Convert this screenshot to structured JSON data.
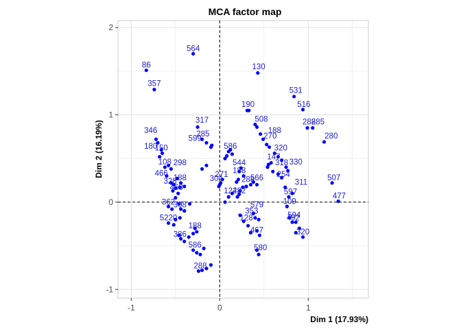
{
  "chart_data": {
    "type": "scatter",
    "title": "MCA factor map",
    "xlabel": "Dim 1 (17.93%)",
    "ylabel": "Dim 2 (16.19%)",
    "xlim": [
      -1.15,
      1.68
    ],
    "ylim": [
      -1.1,
      2.08
    ],
    "xticks": [
      -1,
      0,
      1
    ],
    "yticks": [
      -1,
      0,
      1,
      2
    ],
    "grid": true,
    "reference_lines": {
      "x": 0,
      "y": 0,
      "style": "dashed"
    },
    "colors": {
      "points": "#0000ff",
      "labels": "#1a1ad9",
      "panel_border": "#cccccc",
      "grid": "#e3e3e3"
    },
    "labeled_points": [
      {
        "label": "564",
        "x": -0.3,
        "y": 1.7
      },
      {
        "label": "86",
        "x": -0.83,
        "y": 1.51
      },
      {
        "label": "357",
        "x": -0.74,
        "y": 1.3
      },
      {
        "label": "130",
        "x": 0.44,
        "y": 1.49
      },
      {
        "label": "531",
        "x": 0.86,
        "y": 1.22
      },
      {
        "label": "516",
        "x": 0.95,
        "y": 1.06
      },
      {
        "label": "190",
        "x": 0.32,
        "y": 1.06
      },
      {
        "label": "317",
        "x": -0.2,
        "y": 0.88
      },
      {
        "label": "285",
        "x": -0.19,
        "y": 0.72
      },
      {
        "label": "150",
        "x": -0.66,
        "y": 0.56
      },
      {
        "label": "320",
        "x": 0.69,
        "y": 0.56
      },
      {
        "label": "298",
        "x": -0.45,
        "y": 0.39
      },
      {
        "label": "466",
        "x": -0.66,
        "y": 0.27
      },
      {
        "label": "507",
        "x": 1.29,
        "y": 0.22
      },
      {
        "label": "304",
        "x": -0.04,
        "y": 0.21
      },
      {
        "label": "468",
        "x": -0.49,
        "y": 0.11
      },
      {
        "label": "597",
        "x": 0.8,
        "y": 0.06
      },
      {
        "label": "477",
        "x": 1.35,
        "y": 0.01
      },
      {
        "label": "109",
        "x": 0.79,
        "y": -0.05
      },
      {
        "label": "594",
        "x": 0.84,
        "y": -0.21
      },
      {
        "label": "492",
        "x": 0.83,
        "y": -0.24
      }
    ],
    "cluster_labels": [
      {
        "label": "346",
        "x": -0.78,
        "y": 0.76
      },
      {
        "label": "180",
        "x": -0.78,
        "y": 0.58
      },
      {
        "label": "108",
        "x": -0.62,
        "y": 0.4
      },
      {
        "label": "328",
        "x": -0.56,
        "y": 0.18
      },
      {
        "label": "188",
        "x": -0.45,
        "y": 0.22
      },
      {
        "label": "362",
        "x": -0.58,
        "y": -0.06
      },
      {
        "label": "5220",
        "x": -0.58,
        "y": -0.24
      },
      {
        "label": "308",
        "x": -0.45,
        "y": -0.09
      },
      {
        "label": "386",
        "x": -0.45,
        "y": -0.43
      },
      {
        "label": "188",
        "x": -0.28,
        "y": -0.33
      },
      {
        "label": "586",
        "x": -0.28,
        "y": -0.55
      },
      {
        "label": "288",
        "x": -0.22,
        "y": -0.79
      },
      {
        "label": "599",
        "x": -0.28,
        "y": 0.67
      },
      {
        "label": "586",
        "x": 0.12,
        "y": 0.58
      },
      {
        "label": "544",
        "x": 0.22,
        "y": 0.39
      },
      {
        "label": "188",
        "x": 0.22,
        "y": 0.3
      },
      {
        "label": "271",
        "x": 0.02,
        "y": 0.26
      },
      {
        "label": "288",
        "x": 0.32,
        "y": 0.2
      },
      {
        "label": "566",
        "x": 0.42,
        "y": 0.22
      },
      {
        "label": "122",
        "x": 0.12,
        "y": 0.07
      },
      {
        "label": "482",
        "x": 0.22,
        "y": 0.07
      },
      {
        "label": "579",
        "x": 0.42,
        "y": -0.09
      },
      {
        "label": "353",
        "x": 0.36,
        "y": -0.16
      },
      {
        "label": "128",
        "x": 0.3,
        "y": -0.24
      },
      {
        "label": "467",
        "x": 0.42,
        "y": -0.38
      },
      {
        "label": "580",
        "x": 0.46,
        "y": -0.58
      },
      {
        "label": "508",
        "x": 0.47,
        "y": 0.89
      },
      {
        "label": "188",
        "x": 0.62,
        "y": 0.76
      },
      {
        "label": "270",
        "x": 0.57,
        "y": 0.7
      },
      {
        "label": "147",
        "x": 0.61,
        "y": 0.46
      },
      {
        "label": "318",
        "x": 0.7,
        "y": 0.39
      },
      {
        "label": "254",
        "x": 0.72,
        "y": 0.26
      },
      {
        "label": "330",
        "x": 0.86,
        "y": 0.4
      },
      {
        "label": "311",
        "x": 0.92,
        "y": 0.17
      },
      {
        "label": "288",
        "x": 1.01,
        "y": 0.86
      },
      {
        "label": "285",
        "x": 1.11,
        "y": 0.86
      },
      {
        "label": "280",
        "x": 1.26,
        "y": 0.7
      },
      {
        "label": "320",
        "x": 0.94,
        "y": -0.4
      }
    ],
    "points": [
      [
        -0.3,
        1.7
      ],
      [
        -0.83,
        1.51
      ],
      [
        -0.74,
        1.29
      ],
      [
        0.43,
        1.48
      ],
      [
        0.84,
        1.21
      ],
      [
        0.94,
        1.06
      ],
      [
        0.99,
        0.85
      ],
      [
        1.05,
        0.85
      ],
      [
        1.18,
        0.69
      ],
      [
        1.27,
        0.22
      ],
      [
        1.34,
        0.01
      ],
      [
        0.31,
        1.05
      ],
      [
        0.33,
        1.05
      ],
      [
        0.4,
        0.89
      ],
      [
        0.42,
        0.86
      ],
      [
        0.46,
        0.78
      ],
      [
        0.49,
        0.72
      ],
      [
        0.53,
        0.66
      ],
      [
        0.56,
        0.63
      ],
      [
        0.62,
        0.56
      ],
      [
        0.66,
        0.52
      ],
      [
        0.7,
        0.48
      ],
      [
        0.58,
        0.45
      ],
      [
        0.55,
        0.43
      ],
      [
        0.54,
        0.4
      ],
      [
        0.6,
        0.35
      ],
      [
        0.75,
        0.4
      ],
      [
        0.77,
        0.36
      ],
      [
        0.66,
        0.32
      ],
      [
        0.7,
        0.28
      ],
      [
        0.74,
        0.17
      ],
      [
        0.78,
        0.06
      ],
      [
        0.82,
        0.1
      ],
      [
        0.76,
        -0.05
      ],
      [
        0.79,
        -0.18
      ],
      [
        0.82,
        -0.23
      ],
      [
        0.86,
        -0.23
      ],
      [
        0.9,
        -0.3
      ],
      [
        0.94,
        -0.4
      ],
      [
        0.86,
        -0.35
      ],
      [
        0.4,
        -0.18
      ],
      [
        0.44,
        -0.2
      ],
      [
        0.42,
        -0.33
      ],
      [
        0.45,
        -0.38
      ],
      [
        0.42,
        -0.55
      ],
      [
        0.44,
        -0.6
      ],
      [
        0.23,
        -0.15
      ],
      [
        0.27,
        -0.22
      ],
      [
        0.35,
        -0.35
      ],
      [
        0.32,
        -0.27
      ],
      [
        0.38,
        -0.13
      ],
      [
        0.1,
        0.06
      ],
      [
        0.14,
        0.1
      ],
      [
        0.2,
        0.06
      ],
      [
        0.22,
        0.09
      ],
      [
        0.06,
        0.0
      ],
      [
        0.23,
        0.13
      ],
      [
        0.26,
        0.17
      ],
      [
        0.3,
        0.18
      ],
      [
        0.35,
        0.2
      ],
      [
        0.38,
        0.23
      ],
      [
        0.42,
        0.2
      ],
      [
        0.19,
        0.23
      ],
      [
        0.21,
        0.26
      ],
      [
        0.22,
        0.35
      ],
      [
        0.24,
        0.39
      ],
      [
        0.27,
        0.3
      ],
      [
        0.06,
        0.5
      ],
      [
        0.08,
        0.53
      ],
      [
        0.1,
        0.58
      ],
      [
        0.12,
        0.6
      ],
      [
        0.14,
        0.55
      ],
      [
        0.0,
        0.2
      ],
      [
        0.01,
        0.22
      ],
      [
        0.03,
        0.26
      ],
      [
        -0.01,
        0.18
      ],
      [
        -0.25,
        0.86
      ],
      [
        -0.2,
        0.72
      ],
      [
        -0.15,
        0.68
      ],
      [
        -0.09,
        0.65
      ],
      [
        -0.1,
        0.63
      ],
      [
        -0.2,
        0.38
      ],
      [
        -0.15,
        0.42
      ],
      [
        -0.72,
        0.72
      ],
      [
        -0.7,
        0.68
      ],
      [
        -0.66,
        0.6
      ],
      [
        -0.65,
        0.56
      ],
      [
        -0.68,
        0.52
      ],
      [
        -0.62,
        0.4
      ],
      [
        -0.58,
        0.42
      ],
      [
        -0.55,
        0.38
      ],
      [
        -0.6,
        0.3
      ],
      [
        -0.55,
        0.22
      ],
      [
        -0.52,
        0.2
      ],
      [
        -0.5,
        0.16
      ],
      [
        -0.53,
        0.13
      ],
      [
        -0.47,
        0.1
      ],
      [
        -0.45,
        0.17
      ],
      [
        -0.48,
        0.27
      ],
      [
        -0.44,
        0.22
      ],
      [
        -0.4,
        0.18
      ],
      [
        -0.58,
        -0.05
      ],
      [
        -0.54,
        -0.08
      ],
      [
        -0.5,
        0.05
      ],
      [
        -0.46,
        -0.02
      ],
      [
        -0.44,
        -0.08
      ],
      [
        -0.58,
        -0.24
      ],
      [
        -0.52,
        -0.26
      ],
      [
        -0.5,
        -0.2
      ],
      [
        -0.45,
        -0.18
      ],
      [
        -0.4,
        -0.1
      ],
      [
        -0.46,
        -0.38
      ],
      [
        -0.44,
        -0.42
      ],
      [
        -0.4,
        -0.45
      ],
      [
        -0.35,
        -0.4
      ],
      [
        -0.28,
        -0.3
      ],
      [
        -0.26,
        -0.34
      ],
      [
        -0.3,
        -0.36
      ],
      [
        -0.3,
        -0.55
      ],
      [
        -0.26,
        -0.58
      ],
      [
        -0.22,
        -0.6
      ],
      [
        -0.18,
        -0.53
      ],
      [
        -0.24,
        -0.79
      ],
      [
        -0.2,
        -0.78
      ],
      [
        -0.15,
        -0.76
      ],
      [
        -0.1,
        -0.72
      ],
      [
        -0.34,
        -0.02
      ]
    ]
  }
}
